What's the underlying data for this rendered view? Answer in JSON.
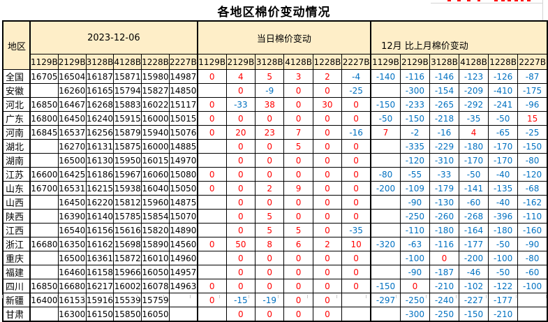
{
  "page": {
    "title": "各地区棉价变动情况"
  },
  "colors": {
    "header_background": "#FEEEC8",
    "positive_value": "#FF0000",
    "negative_value": "#0070C0",
    "border": "#000000"
  },
  "table": {
    "region_header": "地区",
    "groups": [
      {
        "label": "2023-12-06",
        "columns": [
          "1129B",
          "2129B",
          "3128B",
          "4128B",
          "1228B",
          "2227B"
        ]
      },
      {
        "label": "当日棉价变动",
        "columns": [
          "1129B",
          "2129B",
          "3128B",
          "4128B",
          "1228B",
          "2227B"
        ]
      },
      {
        "label": "12月 比上月棉价变动",
        "columns": [
          "1129B",
          "2129B",
          "3128B",
          "4128B",
          "1228B",
          "2227B"
        ]
      }
    ],
    "rows": [
      {
        "region": "全国",
        "prices": [
          "16705",
          "16504",
          "16187",
          "15871",
          "15980",
          "14987"
        ],
        "daily_change": [
          "0",
          "4",
          "5",
          "3",
          "2",
          "-4"
        ],
        "monthly_change": [
          "-140",
          "-116",
          "-146",
          "-123",
          "-126",
          "-87"
        ]
      },
      {
        "region": "安徽",
        "prices": [
          "",
          "16260",
          "16165",
          "15794",
          "15827",
          "14850"
        ],
        "daily_change": [
          "",
          "0",
          "-9",
          "0",
          "0",
          "-25"
        ],
        "monthly_change": [
          "",
          "-300",
          "-154",
          "-209",
          "-410",
          "-175"
        ]
      },
      {
        "region": "河北",
        "prices": [
          "16850",
          "16467",
          "16268",
          "15883",
          "16022",
          "15117"
        ],
        "daily_change": [
          "0",
          "-33",
          "38",
          "0",
          "30",
          "0"
        ],
        "monthly_change": [
          "-150",
          "-233",
          "-265",
          "-292",
          "-241",
          "-96"
        ]
      },
      {
        "region": "广东",
        "prices": [
          "16800",
          "16450",
          "16240",
          "15915",
          "16000",
          "15015"
        ],
        "daily_change": [
          "0",
          "0",
          "0",
          "0",
          "0",
          "0"
        ],
        "monthly_change": [
          "-50",
          "-150",
          "-218",
          "-35",
          "-50",
          "15"
        ]
      },
      {
        "region": "河南",
        "prices": [
          "16845",
          "16537",
          "16256",
          "15879",
          "15940",
          "15076"
        ],
        "daily_change": [
          "0",
          "20",
          "23",
          "7",
          "0",
          "-16"
        ],
        "monthly_change": [
          "7",
          "-2",
          "-16",
          "4",
          "-65",
          "-25"
        ]
      },
      {
        "region": "湖北",
        "prices": [
          "",
          "16270",
          "16131",
          "15875",
          "16000",
          "14885"
        ],
        "daily_change": [
          "",
          "0",
          "0",
          "5",
          "0",
          "0"
        ],
        "monthly_change": [
          "",
          "-335",
          "-229",
          "-180",
          "-170",
          "-150"
        ]
      },
      {
        "region": "湖南",
        "prices": [
          "",
          "16500",
          "16130",
          "15950",
          "16015",
          "14970"
        ],
        "daily_change": [
          "",
          "0",
          "0",
          "0",
          "0",
          "0"
        ],
        "monthly_change": [
          "",
          "-120",
          "-310",
          "-170",
          "-170",
          "-80"
        ]
      },
      {
        "region": "江苏",
        "prices": [
          "16600",
          "16425",
          "16186",
          "15967",
          "16060",
          "15080"
        ],
        "daily_change": [
          "0",
          "0",
          "0",
          "0",
          "0",
          "0"
        ],
        "monthly_change": [
          "-80",
          "-55",
          "-33",
          "-50",
          "-40",
          "-120"
        ]
      },
      {
        "region": "山东",
        "prices": [
          "16700",
          "16531",
          "16215",
          "15938",
          "16040",
          "15050"
        ],
        "daily_change": [
          "0",
          "0",
          "2",
          "9",
          "0",
          "0"
        ],
        "monthly_change": [
          "-200",
          "-109",
          "-179",
          "-141",
          "-135",
          "-68"
        ]
      },
      {
        "region": "山西",
        "prices": [
          "",
          "16450",
          "16220",
          "15812",
          "15960",
          "14875"
        ],
        "daily_change": [
          "",
          "0",
          "0",
          "0",
          "0",
          "0"
        ],
        "monthly_change": [
          "",
          "-90",
          "-130",
          "-60",
          "-40",
          "-162"
        ]
      },
      {
        "region": "陕西",
        "prices": [
          "",
          "16390",
          "16140",
          "15785",
          "15854",
          "15070"
        ],
        "daily_change": [
          "",
          "0",
          "5",
          "0",
          "0",
          "0"
        ],
        "monthly_change": [
          "",
          "-250",
          "-260",
          "-268",
          "-396",
          "-110"
        ]
      },
      {
        "region": "江西",
        "prices": [
          "",
          "16540",
          "16156",
          "15616",
          "15820",
          "14890"
        ],
        "daily_change": [
          "",
          "0",
          "5",
          "5",
          "0",
          "-35"
        ],
        "monthly_change": [
          "",
          "-110",
          "-180",
          "-164",
          "-180",
          "-160"
        ]
      },
      {
        "region": "浙江",
        "prices": [
          "16680",
          "16350",
          "16162",
          "15698",
          "15890",
          "14560"
        ],
        "daily_change": [
          "0",
          "50",
          "8",
          "6",
          "2",
          "10"
        ],
        "monthly_change": [
          "-320",
          "-63",
          "-116",
          "-177",
          "-50",
          "-90"
        ]
      },
      {
        "region": "重庆",
        "prices": [
          "",
          "16500",
          "16361",
          "15872",
          "16010",
          "14960"
        ],
        "daily_change": [
          "",
          "0",
          "0",
          "0",
          "0",
          "0"
        ],
        "monthly_change": [
          "",
          "-100",
          "0",
          "-200",
          "-100",
          "-80"
        ]
      },
      {
        "region": "福建",
        "prices": [
          "",
          "16460",
          "16158",
          "15966",
          "16050",
          "14957"
        ],
        "daily_change": [
          "",
          "0",
          "0",
          "0",
          "0",
          "0"
        ],
        "monthly_change": [
          "",
          "-90",
          "-187",
          "-46",
          "-50",
          "-60"
        ]
      },
      {
        "region": "四川",
        "prices": [
          "16850",
          "16680",
          "16217",
          "16002",
          "16078",
          "14963"
        ],
        "daily_change": [
          "0",
          "0",
          "0",
          "0",
          "0",
          "0"
        ],
        "monthly_change": [
          "-150",
          "0",
          "-210",
          "-102",
          "-122",
          "-100"
        ]
      },
      {
        "region": "新疆",
        "prices": [
          "16400",
          "16153",
          "15916",
          "15539",
          "15759",
          ""
        ],
        "daily_change": [
          "0",
          "-15",
          "-19",
          "0",
          "0",
          ""
        ],
        "monthly_change": [
          "-297",
          "-250",
          "-240",
          "-227",
          "-177",
          ""
        ]
      },
      {
        "region": "甘肃",
        "prices": [
          "",
          "16300",
          "16150",
          "15850",
          "16050",
          ""
        ],
        "daily_change": [
          "",
          "0",
          "0",
          "0",
          "0",
          ""
        ],
        "monthly_change": [
          "",
          "-300",
          "-250",
          "-150",
          "-210",
          ""
        ]
      }
    ]
  }
}
